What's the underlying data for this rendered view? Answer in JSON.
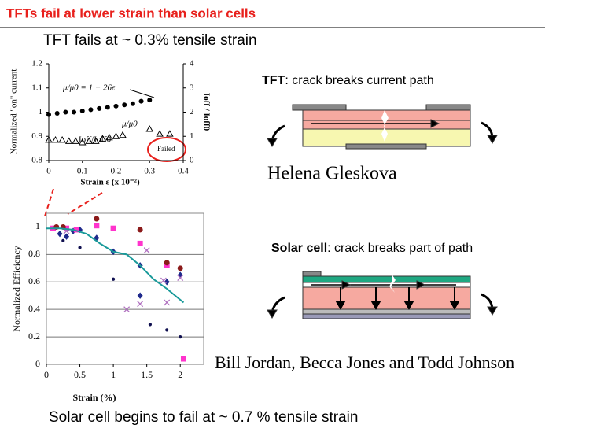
{
  "slide": {
    "title": "TFTs fail at lower strain than solar cells",
    "top_caption": "TFT fails at ~ 0.3% tensile strain",
    "tft_label": {
      "bold": "TFT",
      "text": ": crack breaks current path"
    },
    "tft_author": "Helena Gleskova",
    "solar_label": {
      "bold": "Solar cell",
      "text": ": crack breaks part of path"
    },
    "solar_author": "Bill Jordan, Becca Jones and Todd Johnson",
    "bottom_caption": "Solar cell begins to fail at ~ 0.7 % tensile strain"
  },
  "chart_data": [
    {
      "type": "scatter",
      "x_label": "Strain ε (x 10⁻²)",
      "y_label": "Normalized \"on\" current",
      "y2_label": "Ioff / Ioff0",
      "annotations": [
        "μ/μ0 = 1 + 26ε",
        "μ/μ0",
        "Ioff/Ioff0",
        "Failed"
      ],
      "xlim": [
        0,
        0.4
      ],
      "xticks": [
        0,
        0.1,
        0.2,
        0.3,
        0.4
      ],
      "ylim": [
        0.8,
        1.2
      ],
      "yticks": [
        0.8,
        0.9,
        1,
        1.1,
        1.2
      ],
      "y2lim": [
        0,
        4
      ],
      "y2ticks": [
        0,
        1,
        2,
        3,
        4
      ],
      "grid": false,
      "series": [
        {
          "marker": "circle",
          "color": "#000000",
          "x": [
            0,
            0.025,
            0.05,
            0.075,
            0.1,
            0.125,
            0.15,
            0.175,
            0.2,
            0.225,
            0.25,
            0.275,
            0.3
          ],
          "values": [
            0.99,
            0.995,
            1.0,
            1.0,
            1.005,
            1.01,
            1.015,
            1.02,
            1.025,
            1.03,
            1.035,
            1.045,
            1.05
          ]
        },
        {
          "marker": "triangle",
          "color": "#000000",
          "axis": "y2",
          "x": [
            0,
            0.02,
            0.04,
            0.06,
            0.08,
            0.1,
            0.12,
            0.14,
            0.16,
            0.18,
            0.2,
            0.22,
            0.3,
            0.33,
            0.36
          ],
          "values": [
            0.85,
            0.85,
            0.85,
            0.8,
            0.8,
            0.75,
            0.8,
            0.8,
            0.9,
            0.95,
            1.0,
            1.05,
            1.3,
            1.1,
            1.1
          ]
        }
      ]
    },
    {
      "type": "scatter",
      "x_label": "Strain (%)",
      "y_label": "Normalized Efficiency",
      "xlim": [
        0,
        2.35
      ],
      "xticks": [
        0,
        0.5,
        1,
        1.5,
        2
      ],
      "ylim": [
        0,
        1.1
      ],
      "yticks": [
        0,
        0.2,
        0.4,
        0.6,
        0.8,
        1
      ],
      "grid": true,
      "series": [
        {
          "marker": "diamond",
          "color": "#1f2a8c",
          "x": [
            0.1,
            0.2,
            0.3,
            0.4,
            0.5,
            0.75,
            1.0,
            1.4,
            1.4,
            1.8,
            2.0
          ],
          "values": [
            0.99,
            0.95,
            0.93,
            0.97,
            0.98,
            0.92,
            0.82,
            0.72,
            0.5,
            0.6,
            0.65
          ]
        },
        {
          "marker": "dot",
          "color": "#101050",
          "x": [
            0.25,
            0.5,
            1.0,
            1.55,
            1.8,
            2.0
          ],
          "values": [
            0.9,
            0.85,
            0.62,
            0.29,
            0.25,
            0.2
          ]
        },
        {
          "marker": "square",
          "color": "#ff33cc",
          "x": [
            0.1,
            0.3,
            0.45,
            0.75,
            1.0,
            1.4,
            1.8,
            2.05
          ],
          "values": [
            0.99,
            0.99,
            0.98,
            1.01,
            0.99,
            0.88,
            0.72,
            0.04
          ]
        },
        {
          "marker": "circle",
          "color": "#8b1a1a",
          "x": [
            0.15,
            0.25,
            0.75,
            1.4,
            1.8,
            2.0
          ],
          "values": [
            1.0,
            1.0,
            1.06,
            0.98,
            0.74,
            0.7
          ]
        },
        {
          "marker": "x",
          "color": "#b070c0",
          "x": [
            0.3,
            1.5,
            1.75,
            2.0,
            1.2,
            1.4,
            1.8
          ],
          "values": [
            0.97,
            0.83,
            0.61,
            0.63,
            0.4,
            0.44,
            0.45
          ]
        },
        {
          "type": "line",
          "color": "#1a9a9a",
          "x": [
            0,
            0.2,
            0.4,
            0.6,
            0.8,
            1.0,
            1.2,
            1.4,
            1.6,
            1.8,
            2.05
          ],
          "values": [
            0.99,
            0.99,
            0.98,
            0.95,
            0.88,
            0.82,
            0.8,
            0.72,
            0.62,
            0.55,
            0.45
          ]
        }
      ]
    }
  ]
}
